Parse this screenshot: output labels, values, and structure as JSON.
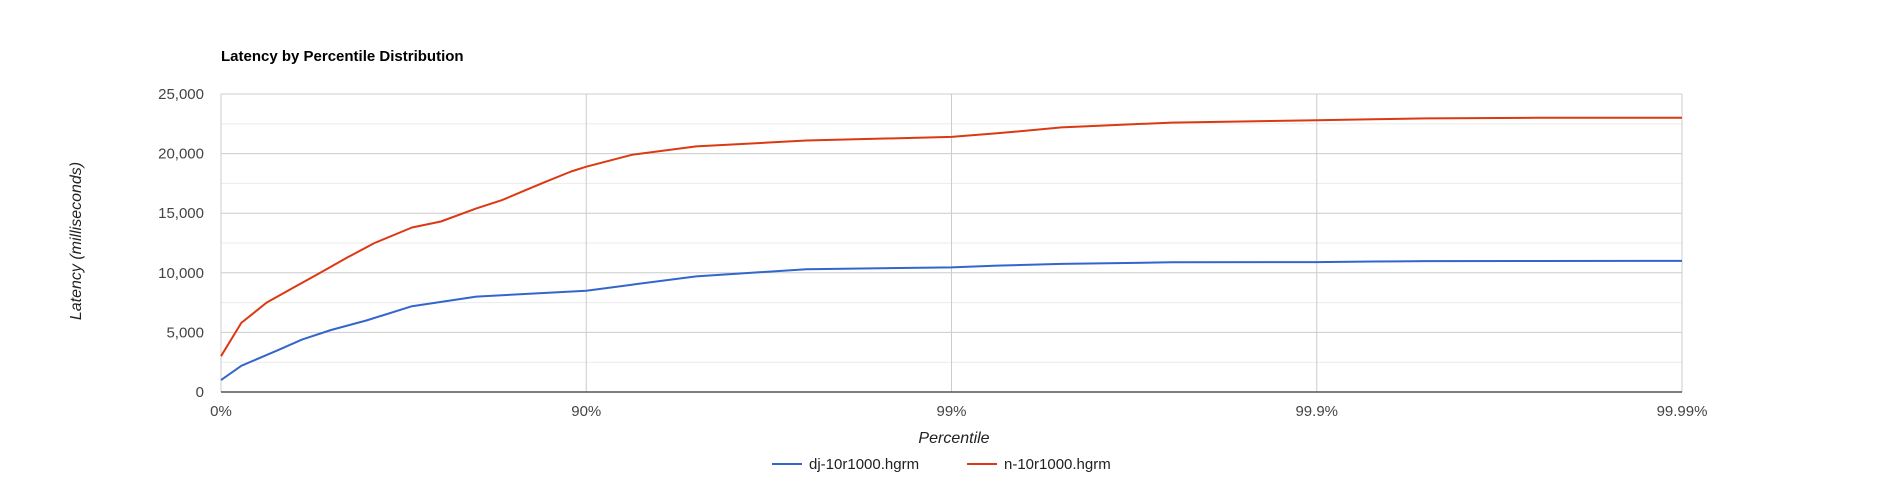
{
  "chart_data": {
    "type": "line",
    "title": "Latency by Percentile Distribution",
    "xlabel": "Percentile",
    "ylabel": "Latency (milliseconds)",
    "x_scale": "log (1 - percentile)",
    "x_ticks": [
      "0%",
      "90%",
      "99%",
      "99.9%",
      "99.99%"
    ],
    "y_ticks": [
      "0",
      "5,000",
      "10,000",
      "15,000",
      "20,000",
      "25,000"
    ],
    "ylim": [
      0,
      25000
    ],
    "xlim": [
      0,
      99.99
    ],
    "grid": true,
    "legend_position": "bottom",
    "series": [
      {
        "name": "dj-10r1000.hgrm",
        "color": "#3366cc",
        "points": [
          [
            0,
            1000
          ],
          [
            12,
            2200
          ],
          [
            30,
            3500
          ],
          [
            40,
            4400
          ],
          [
            50,
            5200
          ],
          [
            60,
            6000
          ],
          [
            70,
            7200
          ],
          [
            80,
            8000
          ],
          [
            90,
            8500
          ],
          [
            92.5,
            9000
          ],
          [
            95,
            9700
          ],
          [
            97.5,
            10300
          ],
          [
            99,
            10450
          ],
          [
            99.25,
            10600
          ],
          [
            99.5,
            10750
          ],
          [
            99.75,
            10880
          ],
          [
            99.9,
            10900
          ],
          [
            99.93,
            10950
          ],
          [
            99.95,
            10980
          ],
          [
            99.975,
            10990
          ],
          [
            99.99,
            11000
          ]
        ]
      },
      {
        "name": "n-10r1000.hgrm",
        "color": "#dc3912",
        "points": [
          [
            0,
            3000
          ],
          [
            12,
            5800
          ],
          [
            25,
            7500
          ],
          [
            37,
            8800
          ],
          [
            45,
            9800
          ],
          [
            55,
            11300
          ],
          [
            62,
            12500
          ],
          [
            70,
            13800
          ],
          [
            75,
            14300
          ],
          [
            80,
            15400
          ],
          [
            83,
            16100
          ],
          [
            85,
            16800
          ],
          [
            87,
            17600
          ],
          [
            89,
            18500
          ],
          [
            90,
            18900
          ],
          [
            92.5,
            19900
          ],
          [
            95,
            20600
          ],
          [
            97.5,
            21100
          ],
          [
            99,
            21400
          ],
          [
            99.25,
            21700
          ],
          [
            99.5,
            22200
          ],
          [
            99.75,
            22600
          ],
          [
            99.9,
            22800
          ],
          [
            99.93,
            22880
          ],
          [
            99.95,
            22950
          ],
          [
            99.975,
            23000
          ],
          [
            99.99,
            23000
          ]
        ]
      }
    ]
  }
}
